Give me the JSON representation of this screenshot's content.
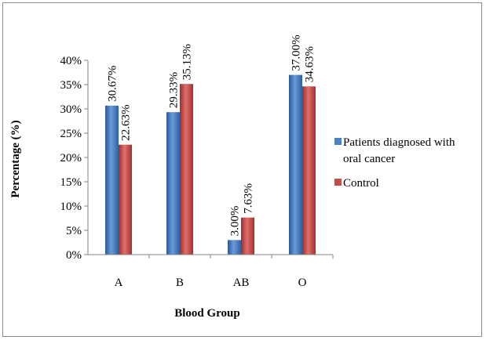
{
  "chart_data": {
    "type": "bar",
    "categories": [
      "A",
      "B",
      "AB",
      "O"
    ],
    "series": [
      {
        "name": "Patients diagnosed with oral cancer",
        "values": [
          30.67,
          29.33,
          3.0,
          37.0
        ],
        "labels": [
          "30.67%",
          "29.33%",
          "3.00%",
          "37.00%"
        ],
        "color": "#4f81bd"
      },
      {
        "name": "Control",
        "values": [
          22.63,
          35.13,
          7.63,
          34.63
        ],
        "labels": [
          "22.63%",
          "35.13%",
          "7.63%",
          "34.63%"
        ],
        "color": "#c0504d"
      }
    ],
    "xlabel": "Blood Group",
    "ylabel": "Percentage (%)",
    "ylim": [
      0,
      40
    ],
    "yticks": [
      "0%",
      "5%",
      "10%",
      "15%",
      "20%",
      "25%",
      "30%",
      "35%",
      "40%"
    ],
    "grid": false,
    "legend_position": "right",
    "legend_lines": [
      [
        "Patients diagnosed with",
        "oral cancer"
      ],
      [
        "Control"
      ]
    ]
  }
}
